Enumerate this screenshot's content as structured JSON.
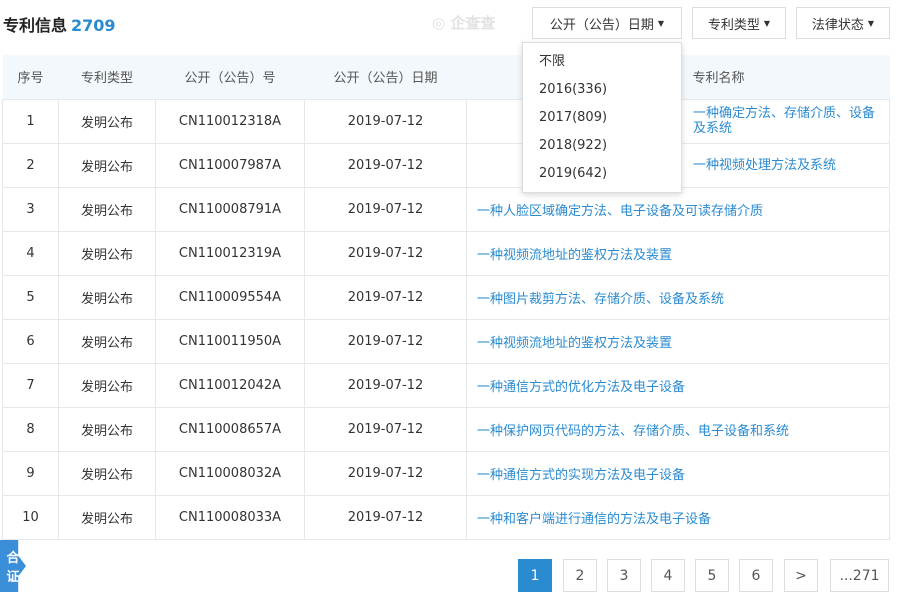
{
  "header": {
    "title": "专利信息",
    "count": "2709",
    "watermark": "企查查"
  },
  "filters": [
    {
      "label": "公开（公告）日期"
    },
    {
      "label": "专利类型"
    },
    {
      "label": "法律状态"
    }
  ],
  "dropdown": {
    "options": [
      "不限",
      "2016(336)",
      "2017(809)",
      "2018(922)",
      "2019(642)"
    ]
  },
  "table": {
    "columns": [
      "序号",
      "专利类型",
      "公开（公告）号",
      "公开（公告）日期",
      "专利名称"
    ],
    "rows": [
      [
        "1",
        "发明公布",
        "CN110012318A",
        "2019-07-12",
        "一种确定方法、存储介质、设备及系统"
      ],
      [
        "2",
        "发明公布",
        "CN110007987A",
        "2019-07-12",
        "一种视频处理方法及系统"
      ],
      [
        "3",
        "发明公布",
        "CN110008791A",
        "2019-07-12",
        "一种人脸区域确定方法、电子设备及可读存储介质"
      ],
      [
        "4",
        "发明公布",
        "CN110012319A",
        "2019-07-12",
        "一种视频流地址的鉴权方法及装置"
      ],
      [
        "5",
        "发明公布",
        "CN110009554A",
        "2019-07-12",
        "一种图片裁剪方法、存储介质、设备及系统"
      ],
      [
        "6",
        "发明公布",
        "CN110011950A",
        "2019-07-12",
        "一种视频流地址的鉴权方法及装置"
      ],
      [
        "7",
        "发明公布",
        "CN110012042A",
        "2019-07-12",
        "一种通信方式的优化方法及电子设备"
      ],
      [
        "8",
        "发明公布",
        "CN110008657A",
        "2019-07-12",
        "一种保护网页代码的方法、存储介质、电子设备和系统"
      ],
      [
        "9",
        "发明公布",
        "CN110008032A",
        "2019-07-12",
        "一种通信方式的实现方法及电子设备"
      ],
      [
        "10",
        "发明公布",
        "CN110008033A",
        "2019-07-12",
        "一种和客户端进行通信的方法及电子设备"
      ]
    ]
  },
  "pagination": {
    "pages": [
      "1",
      "2",
      "3",
      "4",
      "5",
      "6",
      ">",
      "...271"
    ],
    "current": "1"
  },
  "side_badge": {
    "line1": "合",
    "line2": "证"
  },
  "colors": {
    "accent": "#2a8bd0"
  }
}
